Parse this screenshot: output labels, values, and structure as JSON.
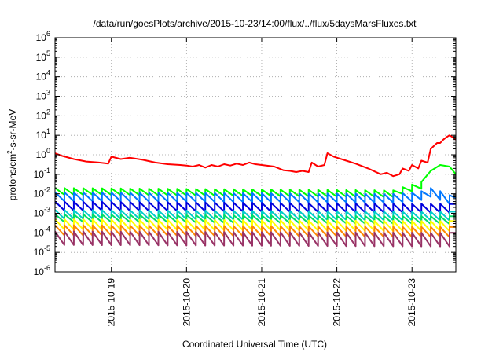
{
  "chart_data": {
    "type": "line",
    "title": "/data/run/goesPlots/archive/2015-10-23/14:00/flux/../flux/5daysMarsFluxes.txt",
    "xlabel": "Coordinated Universal Time (UTC)",
    "ylabel": {
      "prefix": "protons/cm",
      "sup": "2",
      "suffix": "-s-sr-MeV"
    },
    "yscale": "log",
    "ylim": [
      1e-06,
      1000000.0
    ],
    "xlim": [
      "2015-10-18T06:00",
      "2015-10-23T14:00"
    ],
    "grid": true,
    "yticks": [
      {
        "value": 1e-06,
        "base": "10",
        "exp": "-6"
      },
      {
        "value": 1e-05,
        "base": "10",
        "exp": "-5"
      },
      {
        "value": 0.0001,
        "base": "10",
        "exp": "-4"
      },
      {
        "value": 0.001,
        "base": "10",
        "exp": "-3"
      },
      {
        "value": 0.01,
        "base": "10",
        "exp": "-2"
      },
      {
        "value": 0.1,
        "base": "10",
        "exp": "-1"
      },
      {
        "value": 1,
        "base": "10",
        "exp": "0"
      },
      {
        "value": 10,
        "base": "10",
        "exp": "1"
      },
      {
        "value": 100,
        "base": "10",
        "exp": "2"
      },
      {
        "value": 1000,
        "base": "10",
        "exp": "3"
      },
      {
        "value": 10000,
        "base": "10",
        "exp": "4"
      },
      {
        "value": 100000,
        "base": "10",
        "exp": "5"
      },
      {
        "value": 1000000,
        "base": "10",
        "exp": "6"
      }
    ],
    "xticks": [
      {
        "value": "2015-10-19T00:00",
        "label": "2015-10-19"
      },
      {
        "value": "2015-10-20T00:00",
        "label": "2015-10-20"
      },
      {
        "value": "2015-10-21T00:00",
        "label": "2015-10-21"
      },
      {
        "value": "2015-10-22T00:00",
        "label": "2015-10-22"
      },
      {
        "value": "2015-10-23T00:00",
        "label": "2015-10-23"
      }
    ],
    "series": [
      {
        "color": "#ff0000",
        "points": [
          [
            "2015-10-18T06:00",
            1.2
          ],
          [
            "2015-10-18T08:00",
            0.9
          ],
          [
            "2015-10-18T12:00",
            0.6
          ],
          [
            "2015-10-18T16:00",
            0.45
          ],
          [
            "2015-10-18T20:00",
            0.4
          ],
          [
            "2015-10-18T23:00",
            0.35
          ],
          [
            "2015-10-19T00:00",
            0.8
          ],
          [
            "2015-10-19T03:00",
            0.6
          ],
          [
            "2015-10-19T06:00",
            0.7
          ],
          [
            "2015-10-19T10:00",
            0.55
          ],
          [
            "2015-10-19T14:00",
            0.4
          ],
          [
            "2015-10-19T18:00",
            0.33
          ],
          [
            "2015-10-19T22:00",
            0.3
          ],
          [
            "2015-10-20T00:00",
            0.28
          ],
          [
            "2015-10-20T02:00",
            0.25
          ],
          [
            "2015-10-20T04:00",
            0.3
          ],
          [
            "2015-10-20T06:00",
            0.22
          ],
          [
            "2015-10-20T08:00",
            0.3
          ],
          [
            "2015-10-20T10:00",
            0.25
          ],
          [
            "2015-10-20T12:00",
            0.33
          ],
          [
            "2015-10-20T14:00",
            0.28
          ],
          [
            "2015-10-20T16:00",
            0.35
          ],
          [
            "2015-10-20T18:00",
            0.3
          ],
          [
            "2015-10-20T20:00",
            0.4
          ],
          [
            "2015-10-20T22:00",
            0.33
          ],
          [
            "2015-10-21T00:00",
            0.3
          ],
          [
            "2015-10-21T04:00",
            0.25
          ],
          [
            "2015-10-21T07:00",
            0.16
          ],
          [
            "2015-10-21T09:00",
            0.15
          ],
          [
            "2015-10-21T11:00",
            0.13
          ],
          [
            "2015-10-21T13:00",
            0.15
          ],
          [
            "2015-10-21T15:00",
            0.13
          ],
          [
            "2015-10-21T16:00",
            0.4
          ],
          [
            "2015-10-21T18:00",
            0.25
          ],
          [
            "2015-10-21T20:00",
            0.3
          ],
          [
            "2015-10-21T21:00",
            1.2
          ],
          [
            "2015-10-21T23:00",
            0.8
          ],
          [
            "2015-10-22T03:00",
            0.5
          ],
          [
            "2015-10-22T06:00",
            0.35
          ],
          [
            "2015-10-22T10:00",
            0.2
          ],
          [
            "2015-10-22T14:00",
            0.1
          ],
          [
            "2015-10-22T16:00",
            0.12
          ],
          [
            "2015-10-22T18:00",
            0.08
          ],
          [
            "2015-10-22T20:00",
            0.1
          ],
          [
            "2015-10-22T21:00",
            0.2
          ],
          [
            "2015-10-22T23:00",
            0.15
          ],
          [
            "2015-10-23T00:00",
            0.3
          ],
          [
            "2015-10-23T02:00",
            0.2
          ],
          [
            "2015-10-23T03:00",
            0.5
          ],
          [
            "2015-10-23T05:00",
            0.4
          ],
          [
            "2015-10-23T06:00",
            2
          ],
          [
            "2015-10-23T08:00",
            4
          ],
          [
            "2015-10-23T09:00",
            4
          ],
          [
            "2015-10-23T10:00",
            6
          ],
          [
            "2015-10-23T11:00",
            8
          ],
          [
            "2015-10-23T12:00",
            10
          ],
          [
            "2015-10-23T13:00",
            8
          ],
          [
            "2015-10-23T14:00",
            6
          ]
        ]
      },
      {
        "color": "#00ff00",
        "points": [
          [
            "2015-10-18T06:00",
            0.02
          ],
          [
            "2015-10-22T18:00",
            0.015
          ],
          [
            "2015-10-22T22:00",
            0.025
          ],
          [
            "2015-10-23T03:00",
            0.04
          ],
          [
            "2015-10-23T06:00",
            0.15
          ],
          [
            "2015-10-23T09:00",
            0.3
          ],
          [
            "2015-10-23T12:00",
            0.25
          ],
          [
            "2015-10-23T14:00",
            0.1
          ]
        ],
        "sawtooth": {
          "ratio": 0.45,
          "start": "2015-10-18T06:00",
          "end": "2015-10-23T02:00"
        }
      },
      {
        "color": "#0077ff",
        "points": [
          [
            "2015-10-18T06:00",
            0.012
          ],
          [
            "2015-10-22T18:00",
            0.01
          ],
          [
            "2015-10-23T02:00",
            0.012
          ],
          [
            "2015-10-23T06:00",
            0.02
          ],
          [
            "2015-10-23T10:00",
            0.012
          ],
          [
            "2015-10-23T14:00",
            0.006
          ]
        ],
        "sawtooth": {
          "ratio": 0.35,
          "start": "2015-10-18T06:00",
          "end": "2015-10-23T14:00"
        }
      },
      {
        "color": "#0000dd",
        "points": [
          [
            "2015-10-18T06:00",
            0.004
          ],
          [
            "2015-10-23T14:00",
            0.003
          ]
        ],
        "sawtooth": {
          "ratio": 0.35,
          "start": "2015-10-18T06:00",
          "end": "2015-10-23T14:00"
        }
      },
      {
        "color": "#00cccc",
        "points": [
          [
            "2015-10-18T06:00",
            0.0015
          ],
          [
            "2015-10-23T14:00",
            0.0012
          ]
        ],
        "sawtooth": {
          "ratio": 0.35,
          "start": "2015-10-18T06:00",
          "end": "2015-10-23T14:00"
        }
      },
      {
        "color": "#00dd66",
        "points": [
          [
            "2015-10-18T06:00",
            0.0009
          ],
          [
            "2015-10-23T14:00",
            0.0007
          ]
        ],
        "sawtooth": {
          "ratio": 0.4,
          "start": "2015-10-18T06:00",
          "end": "2015-10-23T14:00"
        }
      },
      {
        "color": "#ffff00",
        "points": [
          [
            "2015-10-18T06:00",
            0.0005
          ],
          [
            "2015-10-23T14:00",
            0.0004
          ]
        ],
        "sawtooth": {
          "ratio": 0.3,
          "start": "2015-10-18T06:00",
          "end": "2015-10-23T14:00"
        }
      },
      {
        "color": "#ff8800",
        "points": [
          [
            "2015-10-18T06:00",
            0.00025
          ],
          [
            "2015-10-23T14:00",
            0.0002
          ]
        ],
        "sawtooth": {
          "ratio": 0.3,
          "start": "2015-10-18T06:00",
          "end": "2015-10-23T14:00"
        }
      },
      {
        "color": "#993366",
        "points": [
          [
            "2015-10-18T06:00",
            0.00012
          ],
          [
            "2015-10-23T14:00",
            0.0001
          ]
        ],
        "sawtooth": {
          "ratio": 0.2,
          "start": "2015-10-18T06:00",
          "end": "2015-10-23T14:00"
        }
      }
    ]
  }
}
